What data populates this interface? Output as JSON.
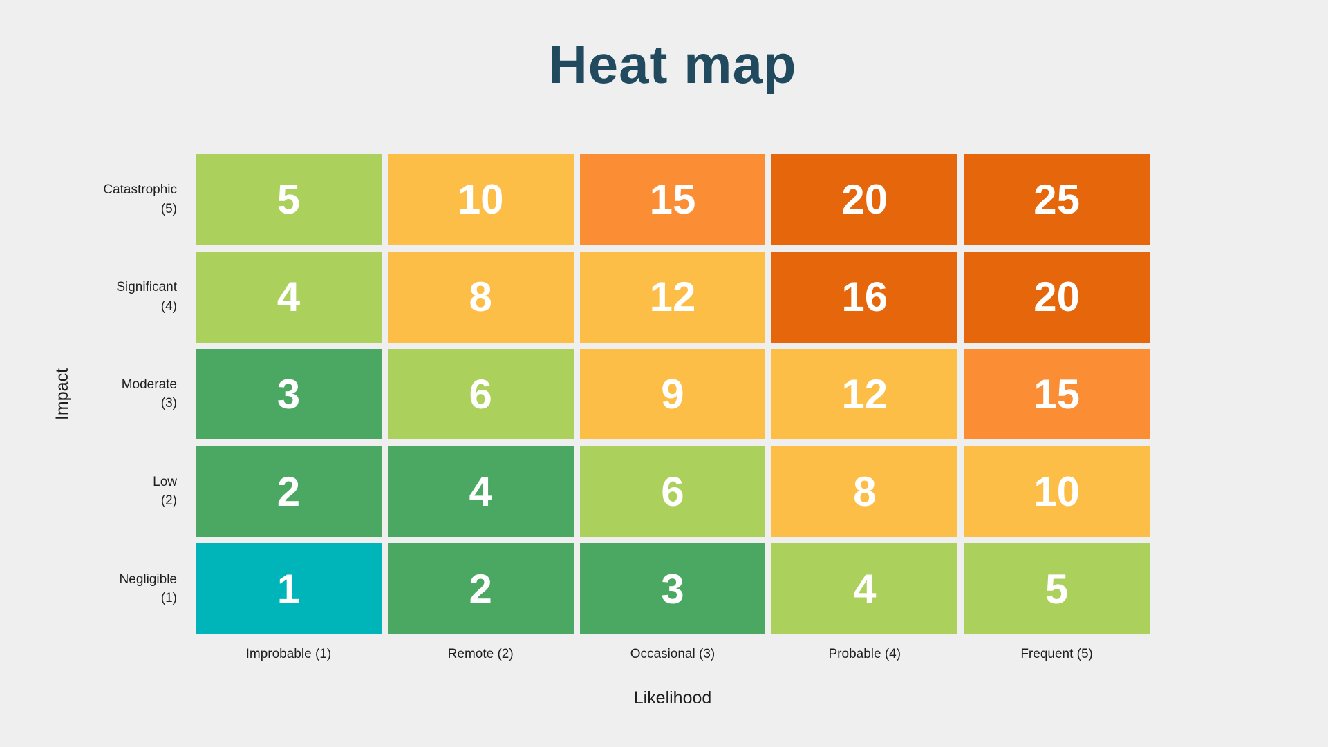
{
  "chart_data": {
    "type": "heatmap",
    "title": "Heat map",
    "xlabel": "Likelihood",
    "ylabel": "Impact",
    "x_categories": [
      "Improbable (1)",
      "Remote (2)",
      "Occasional (3)",
      "Probable (4)",
      "Frequent (5)"
    ],
    "y_categories": [
      "Catastrophic (5)",
      "Significant (4)",
      "Moderate (3)",
      "Low (2)",
      "Negligible (1)"
    ],
    "legend": "none",
    "grid": "off",
    "value_rule": "cell value = impact level × likelihood level",
    "colors": {
      "teal": "#00b5ba",
      "green": "#4aa862",
      "light_green": "#acd05c",
      "amber": "#fdbe48",
      "orange": "#fb8d35",
      "dark_orange": "#e5660b",
      "title_text": "#214a5e",
      "label_text": "#1e1e1e",
      "cell_text": "#ffffff",
      "background": "#efefef"
    },
    "rows": [
      {
        "label": "Catastrophic",
        "level": "(5)",
        "cells": [
          {
            "value": "5",
            "color": "#acd05c"
          },
          {
            "value": "10",
            "color": "#fdbe48"
          },
          {
            "value": "15",
            "color": "#fb8d35"
          },
          {
            "value": "20",
            "color": "#e5660b"
          },
          {
            "value": "25",
            "color": "#e5660b"
          }
        ]
      },
      {
        "label": "Significant",
        "level": "(4)",
        "cells": [
          {
            "value": "4",
            "color": "#acd05c"
          },
          {
            "value": "8",
            "color": "#fdbe48"
          },
          {
            "value": "12",
            "color": "#fdbe48"
          },
          {
            "value": "16",
            "color": "#e5660b"
          },
          {
            "value": "20",
            "color": "#e5660b"
          }
        ]
      },
      {
        "label": "Moderate",
        "level": "(3)",
        "cells": [
          {
            "value": "3",
            "color": "#4aa862"
          },
          {
            "value": "6",
            "color": "#acd05c"
          },
          {
            "value": "9",
            "color": "#fdbe48"
          },
          {
            "value": "12",
            "color": "#fdbe48"
          },
          {
            "value": "15",
            "color": "#fb8d35"
          }
        ]
      },
      {
        "label": "Low",
        "level": "(2)",
        "cells": [
          {
            "value": "2",
            "color": "#4aa862"
          },
          {
            "value": "4",
            "color": "#4aa862"
          },
          {
            "value": "6",
            "color": "#acd05c"
          },
          {
            "value": "8",
            "color": "#fdbe48"
          },
          {
            "value": "10",
            "color": "#fdbe48"
          }
        ]
      },
      {
        "label": "Negligible",
        "level": "(1)",
        "cells": [
          {
            "value": "1",
            "color": "#00b5ba"
          },
          {
            "value": "2",
            "color": "#4aa862"
          },
          {
            "value": "3",
            "color": "#4aa862"
          },
          {
            "value": "4",
            "color": "#acd05c"
          },
          {
            "value": "5",
            "color": "#acd05c"
          }
        ]
      }
    ]
  }
}
